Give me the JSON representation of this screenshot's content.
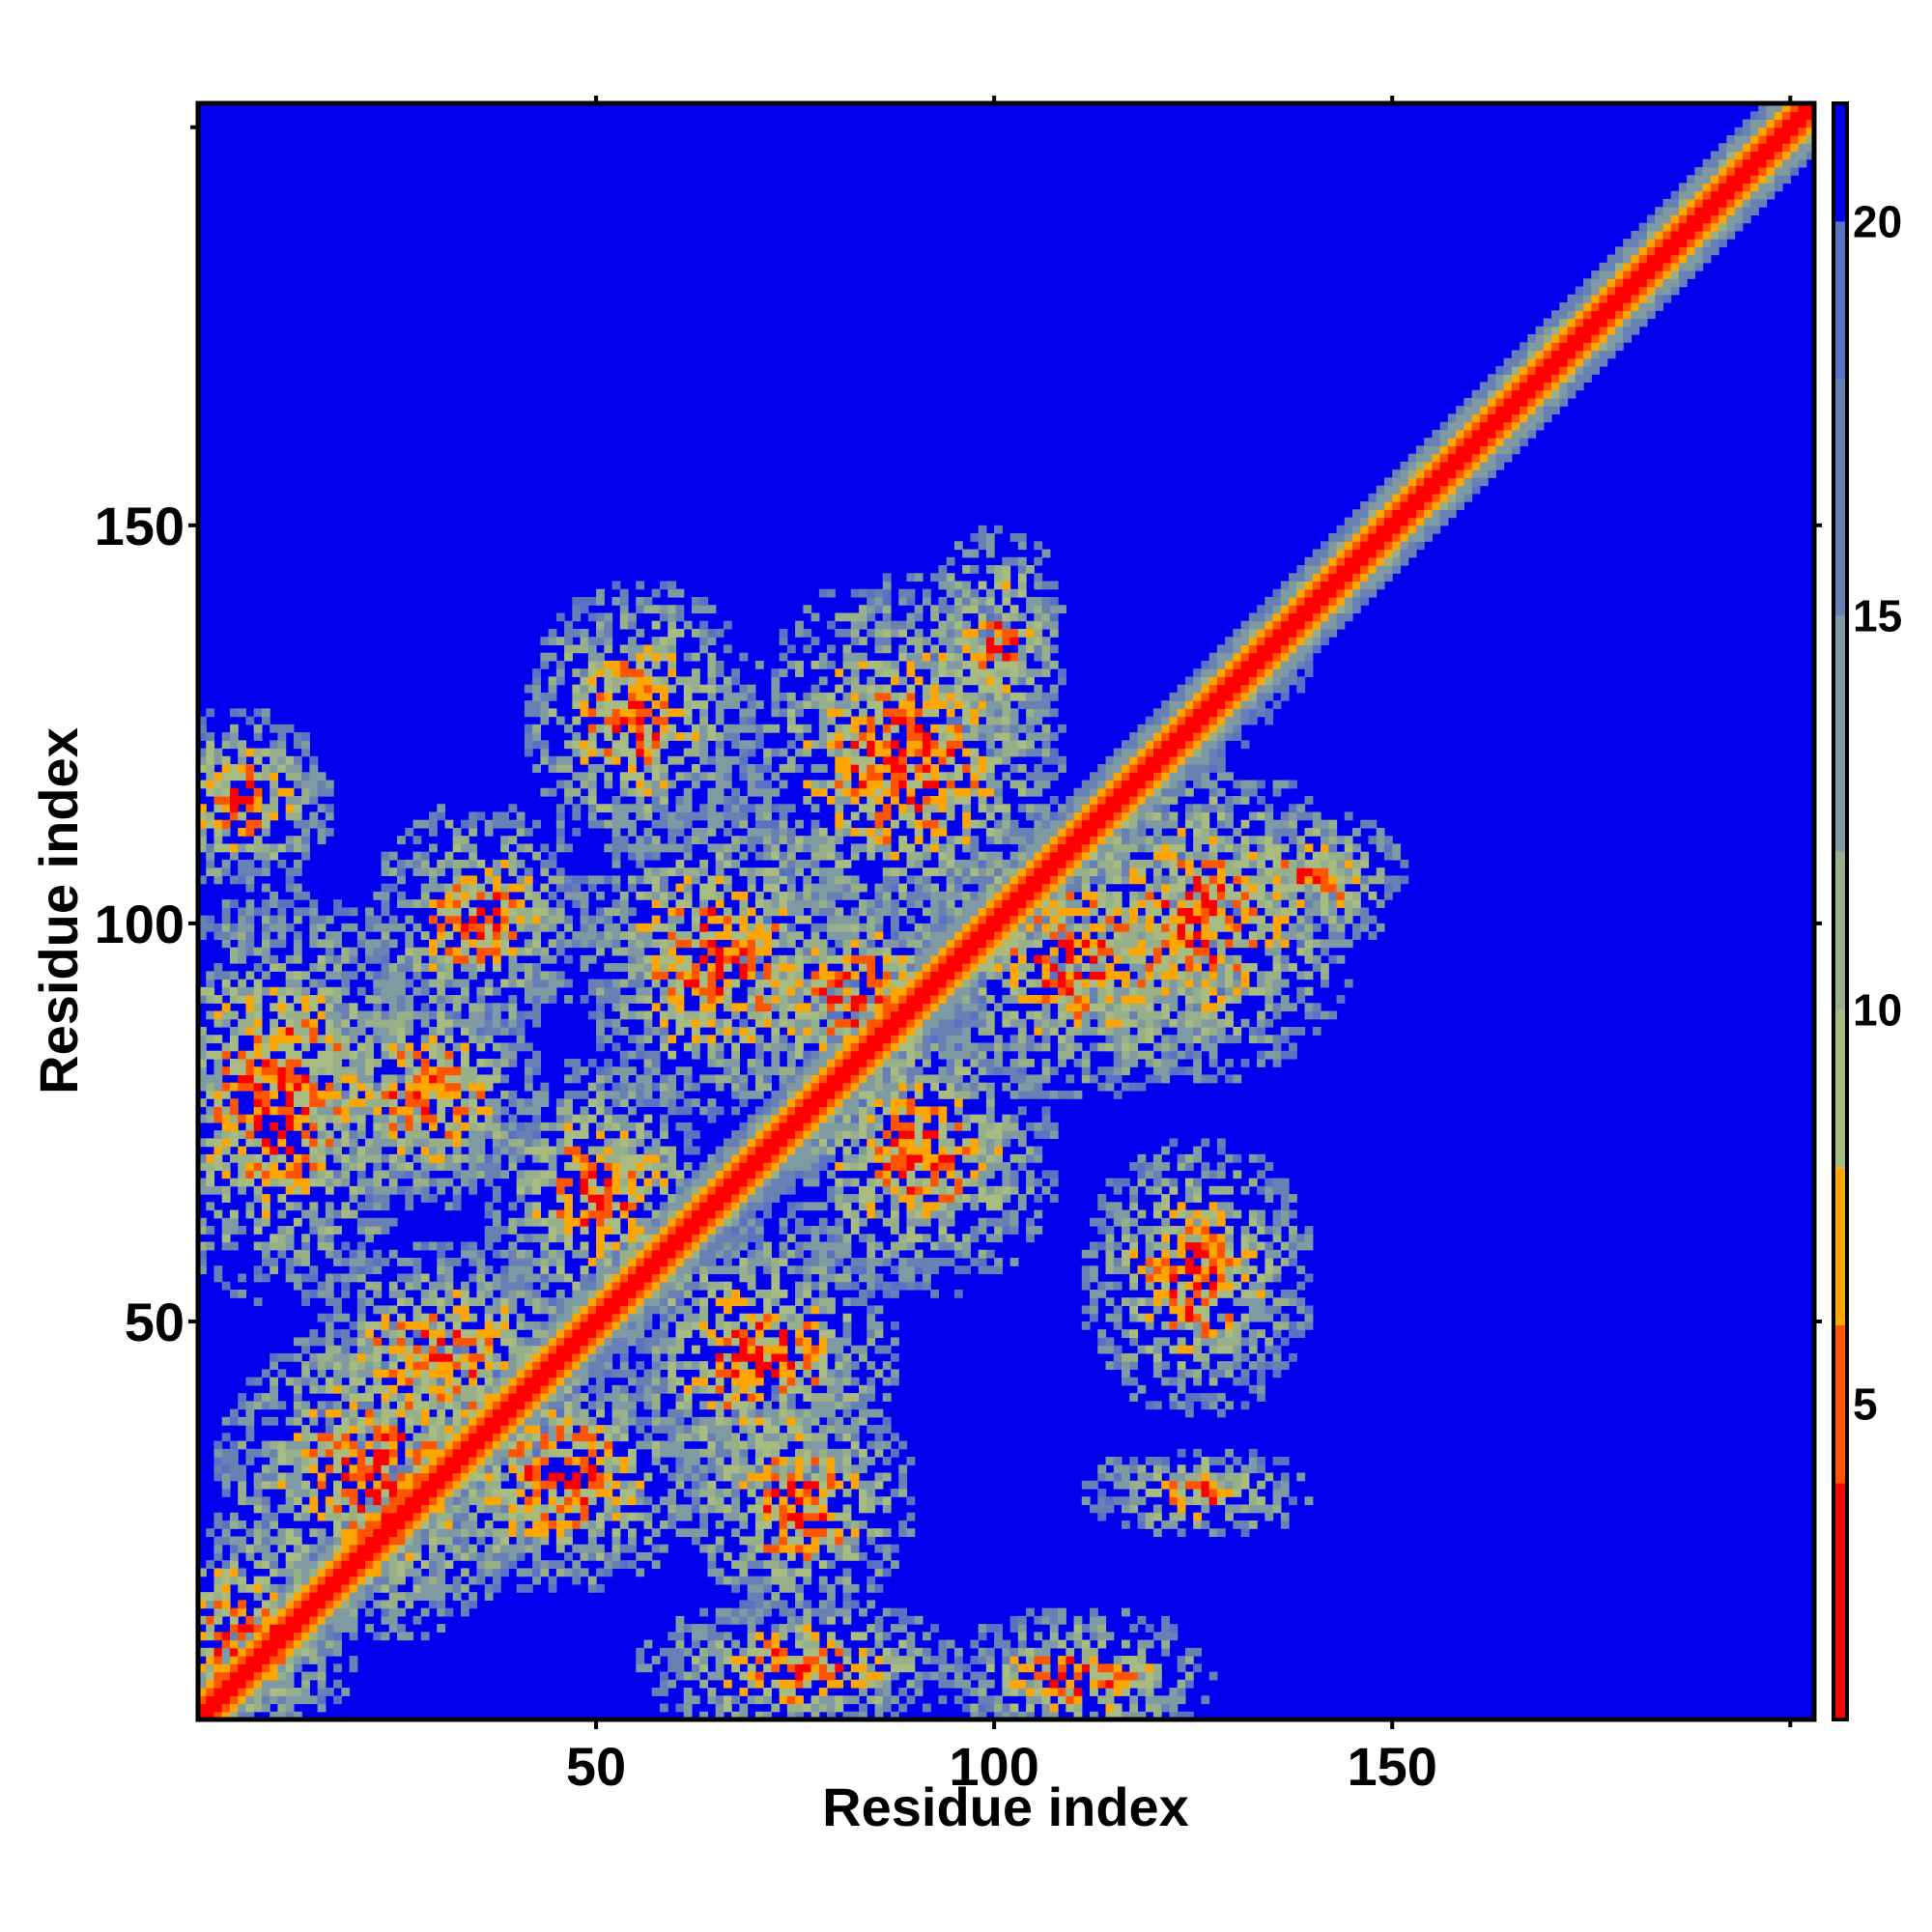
{
  "chart_data": {
    "type": "heatmap",
    "title": "",
    "xlabel": "Residue index",
    "ylabel": "Residue index",
    "n_residues": 203,
    "xlim": [
      0,
      203
    ],
    "ylim": [
      0,
      203
    ],
    "x_ticks": [
      50,
      100,
      150
    ],
    "y_ticks": [
      50,
      100,
      150
    ],
    "grid": false,
    "colorbar": {
      "ticks": [
        5,
        10,
        15,
        20
      ],
      "range": [
        1,
        21.5
      ],
      "min_color": "#ff0000",
      "max_color": "#0000ee"
    },
    "color_bands": [
      {
        "max": 4,
        "color": "#ff0000"
      },
      {
        "max": 6,
        "color": "#ff5500"
      },
      {
        "max": 8,
        "color": "#ffa500"
      },
      {
        "max": 10,
        "color": "#a8bc82"
      },
      {
        "max": 12,
        "color": "#98b08a"
      },
      {
        "max": 15,
        "color": "#7f9aa2"
      },
      {
        "max": 18,
        "color": "#6880b4"
      },
      {
        "max": 20,
        "color": "#5a72c4"
      },
      {
        "max": 99,
        "color": "#0000ee"
      }
    ],
    "description_of_data": "symmetric-style residue distance map (Angstrom); diagonal band of low distances along x=y, contact clusters in lower-left triangle, upper-right triangle empty beyond region",
    "contact_blobs": [
      {
        "x": 10,
        "y": 78,
        "rx": 12,
        "ry": 18,
        "strength": 0.85
      },
      {
        "x": 22,
        "y": 30,
        "rx": 14,
        "ry": 14,
        "strength": 0.8
      },
      {
        "x": 28,
        "y": 78,
        "rx": 10,
        "ry": 10,
        "strength": 0.8
      },
      {
        "x": 35,
        "y": 100,
        "rx": 10,
        "ry": 10,
        "strength": 0.6
      },
      {
        "x": 30,
        "y": 45,
        "rx": 12,
        "ry": 10,
        "strength": 0.85
      },
      {
        "x": 45,
        "y": 30,
        "rx": 12,
        "ry": 10,
        "strength": 0.8
      },
      {
        "x": 50,
        "y": 65,
        "rx": 10,
        "ry": 12,
        "strength": 0.7
      },
      {
        "x": 55,
        "y": 125,
        "rx": 10,
        "ry": 12,
        "strength": 0.75
      },
      {
        "x": 65,
        "y": 95,
        "rx": 12,
        "ry": 14,
        "strength": 0.75
      },
      {
        "x": 70,
        "y": 45,
        "rx": 12,
        "ry": 12,
        "strength": 0.7
      },
      {
        "x": 75,
        "y": 27,
        "rx": 10,
        "ry": 10,
        "strength": 0.85
      },
      {
        "x": 75,
        "y": 6,
        "rx": 14,
        "ry": 6,
        "strength": 0.75
      },
      {
        "x": 82,
        "y": 90,
        "rx": 10,
        "ry": 10,
        "strength": 0.75
      },
      {
        "x": 90,
        "y": 70,
        "rx": 12,
        "ry": 12,
        "strength": 0.65
      },
      {
        "x": 88,
        "y": 120,
        "rx": 14,
        "ry": 16,
        "strength": 0.8
      },
      {
        "x": 100,
        "y": 135,
        "rx": 6,
        "ry": 10,
        "strength": 0.6
      },
      {
        "x": 110,
        "y": 95,
        "rx": 14,
        "ry": 12,
        "strength": 0.75
      },
      {
        "x": 125,
        "y": 100,
        "rx": 14,
        "ry": 14,
        "strength": 0.7
      },
      {
        "x": 125,
        "y": 55,
        "rx": 10,
        "ry": 12,
        "strength": 0.7
      },
      {
        "x": 110,
        "y": 5,
        "rx": 12,
        "ry": 6,
        "strength": 0.55
      },
      {
        "x": 125,
        "y": 28,
        "rx": 10,
        "ry": 4,
        "strength": 0.45
      },
      {
        "x": 5,
        "y": 115,
        "rx": 8,
        "ry": 8,
        "strength": 0.7
      },
      {
        "x": 140,
        "y": 105,
        "rx": 8,
        "ry": 6,
        "strength": 0.55
      },
      {
        "x": 5,
        "y": 10,
        "rx": 10,
        "ry": 10,
        "strength": 0.7
      }
    ]
  }
}
